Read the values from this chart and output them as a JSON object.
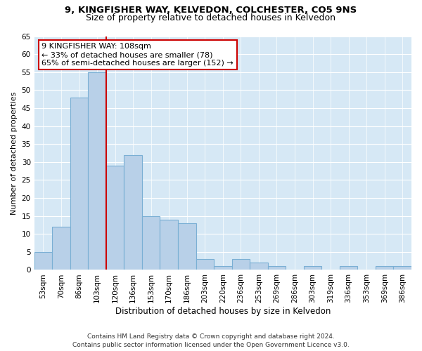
{
  "title1": "9, KINGFISHER WAY, KELVEDON, COLCHESTER, CO5 9NS",
  "title2": "Size of property relative to detached houses in Kelvedon",
  "xlabel": "Distribution of detached houses by size in Kelvedon",
  "ylabel": "Number of detached properties",
  "bar_labels": [
    "53sqm",
    "70sqm",
    "86sqm",
    "103sqm",
    "120sqm",
    "136sqm",
    "153sqm",
    "170sqm",
    "186sqm",
    "203sqm",
    "220sqm",
    "236sqm",
    "253sqm",
    "269sqm",
    "286sqm",
    "303sqm",
    "319sqm",
    "336sqm",
    "353sqm",
    "369sqm",
    "386sqm"
  ],
  "bar_values": [
    5,
    12,
    48,
    55,
    29,
    32,
    15,
    14,
    13,
    3,
    1,
    3,
    2,
    1,
    0,
    1,
    0,
    1,
    0,
    1,
    1
  ],
  "bar_color": "#b8d0e8",
  "bar_edge_color": "#7aafd4",
  "vline_bin_index": 3,
  "vline_color": "#cc0000",
  "annotation_text": "9 KINGFISHER WAY: 108sqm\n← 33% of detached houses are smaller (78)\n65% of semi-detached houses are larger (152) →",
  "annotation_box_facecolor": "#ffffff",
  "annotation_box_edgecolor": "#cc0000",
  "ylim": [
    0,
    65
  ],
  "yticks": [
    0,
    5,
    10,
    15,
    20,
    25,
    30,
    35,
    40,
    45,
    50,
    55,
    60,
    65
  ],
  "background_color": "#d6e8f5",
  "footer": "Contains HM Land Registry data © Crown copyright and database right 2024.\nContains public sector information licensed under the Open Government Licence v3.0.",
  "title1_fontsize": 9.5,
  "title2_fontsize": 9,
  "xlabel_fontsize": 8.5,
  "ylabel_fontsize": 8,
  "tick_fontsize": 7.5,
  "ann_fontsize": 8,
  "footer_fontsize": 6.5
}
